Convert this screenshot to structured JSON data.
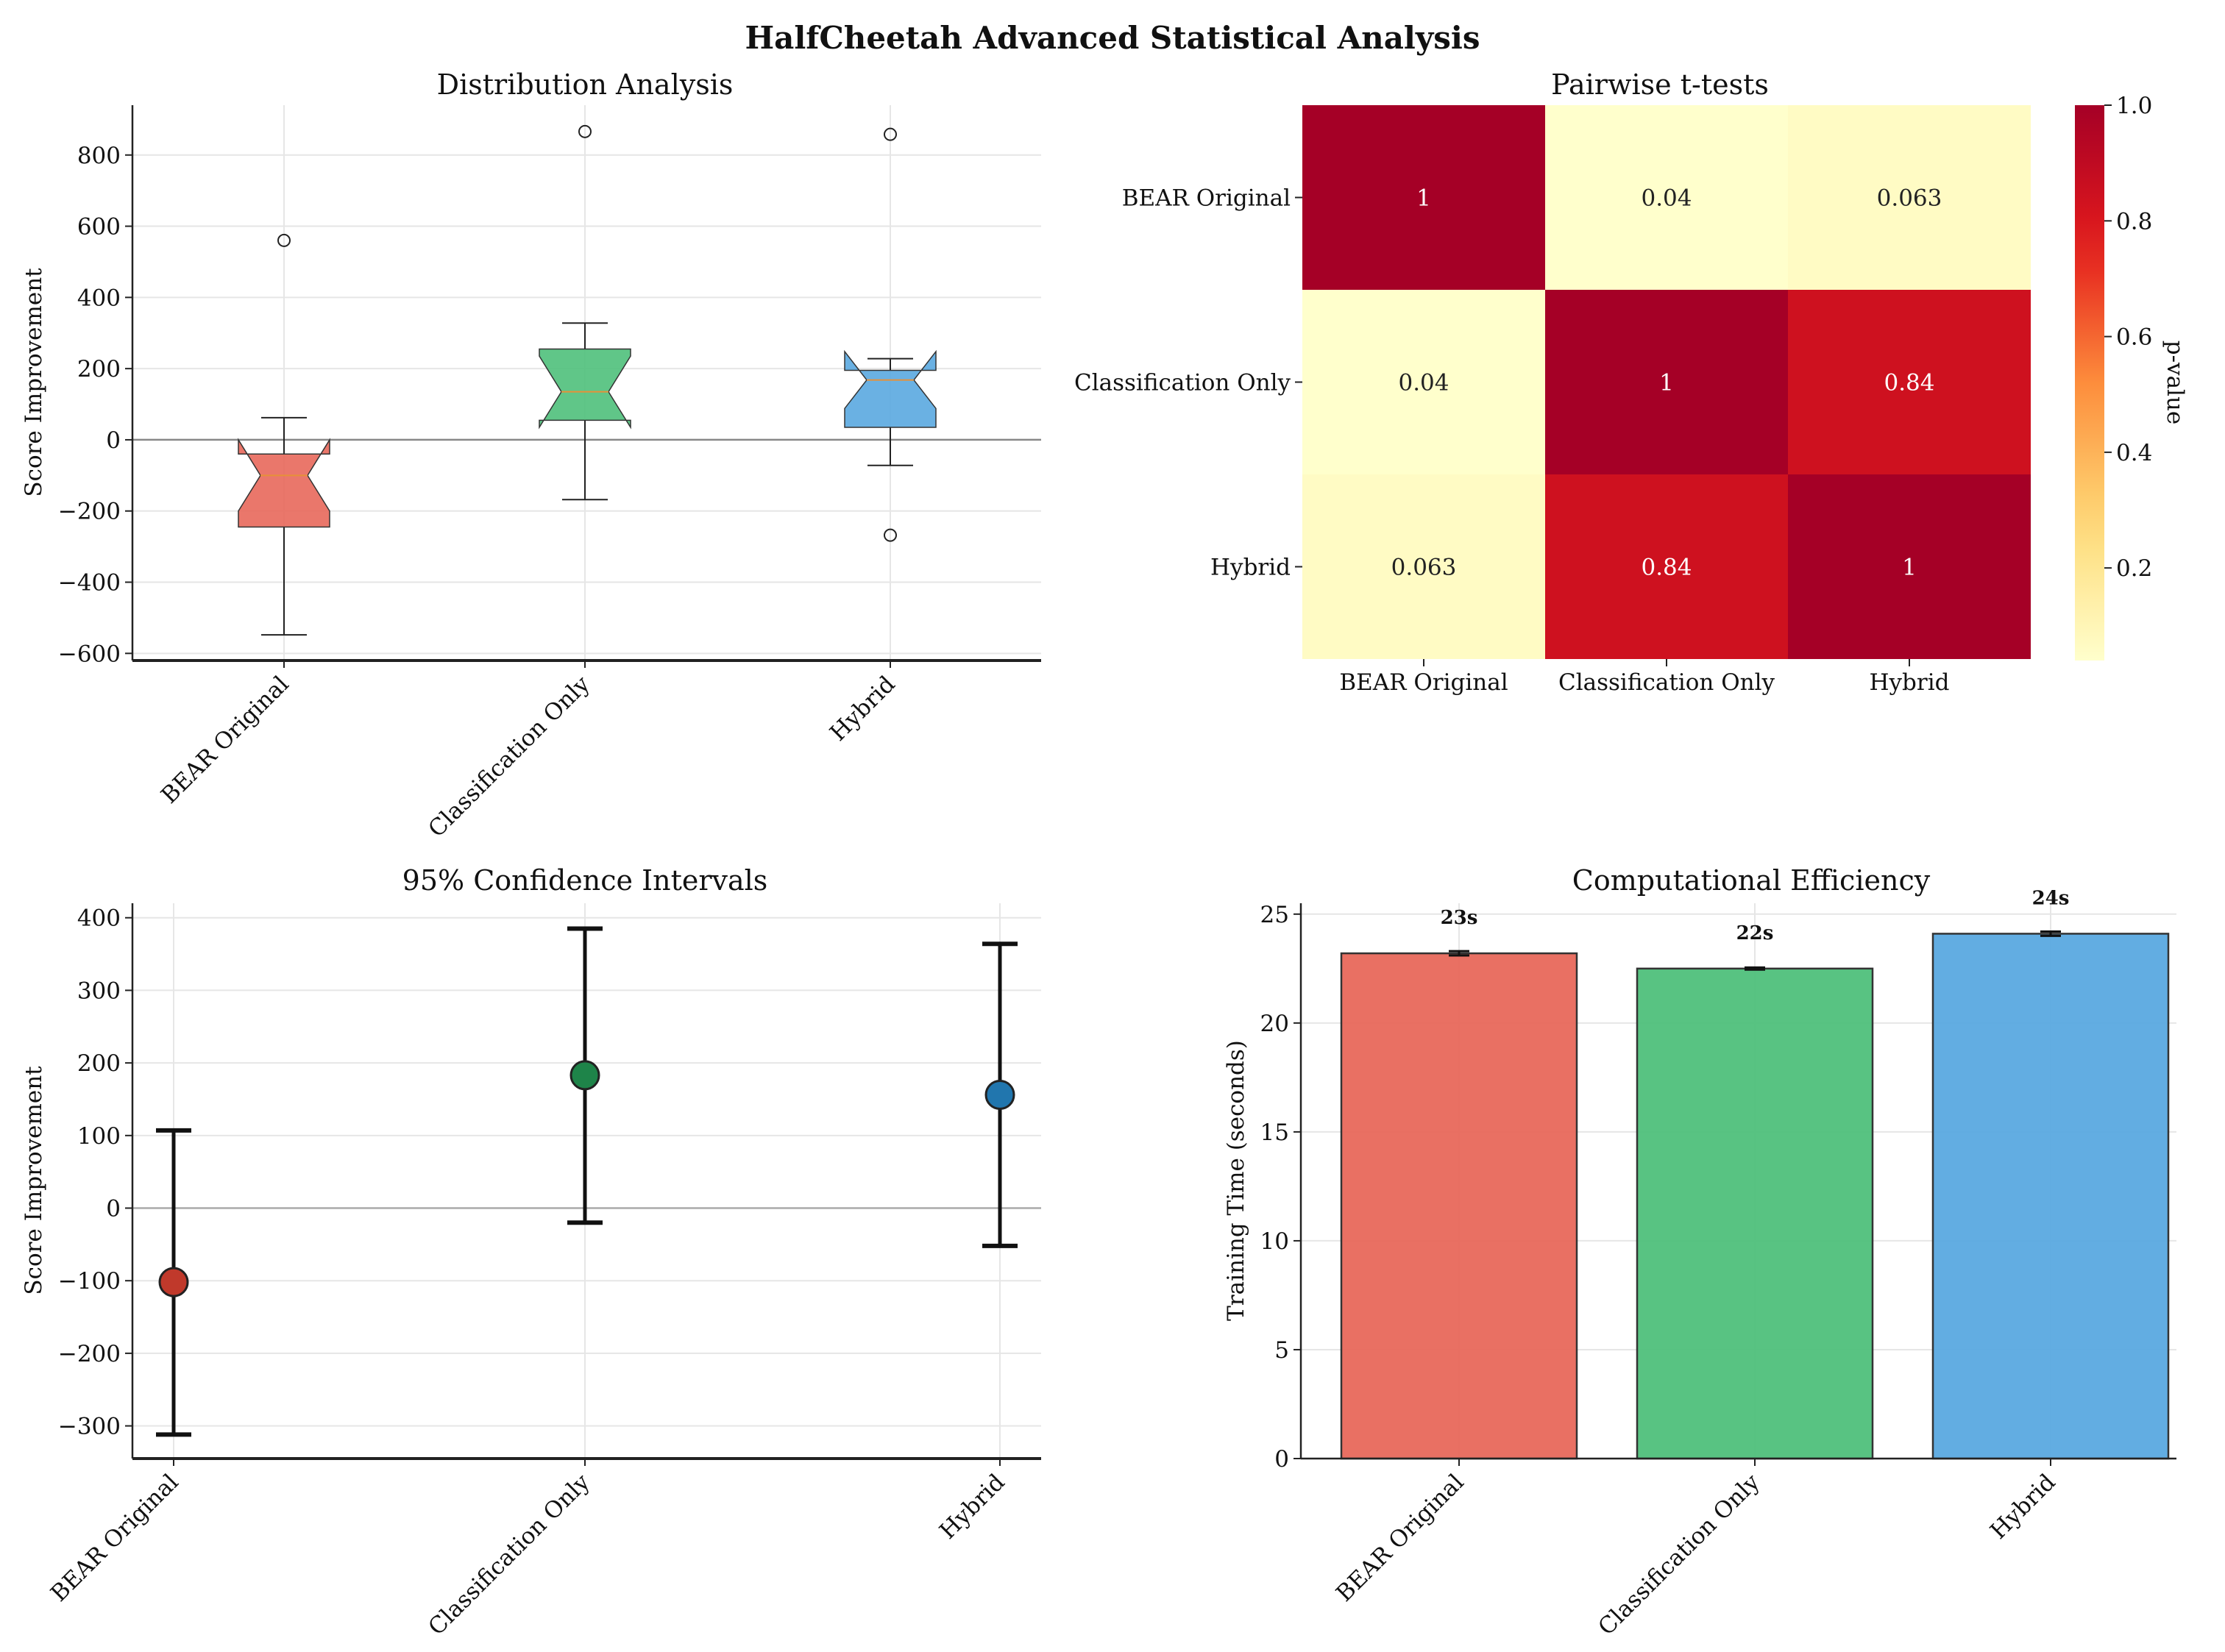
{
  "figure_title": "HalfCheetah Advanced Statistical Analysis",
  "colors": {
    "bear": "#e8685b",
    "classification": "#4fc07b",
    "hybrid": "#5aa9e0",
    "ci_bear": "#c0392b",
    "ci_classification": "#1e8449",
    "ci_hybrid": "#2176ae",
    "median": "#e69138",
    "low_p": "#ffffcc",
    "high_p": "#a50026"
  },
  "chart_data": [
    {
      "type": "box",
      "title": "Distribution Analysis",
      "xlabel": "",
      "ylabel": "Score Improvement",
      "ylim": [
        -620,
        940
      ],
      "yticks": [
        -600,
        -400,
        -200,
        0,
        200,
        400,
        600,
        800
      ],
      "ytick_labels": [
        "−600",
        "−400",
        "−200",
        "0",
        "200",
        "400",
        "600",
        "800"
      ],
      "categories": [
        "BEAR Original",
        "Classification Only",
        "Hybrid"
      ],
      "boxes": [
        {
          "name": "BEAR Original",
          "q1": -245,
          "median": -100,
          "q3": -40,
          "whisker_low": -548,
          "whisker_high": 62,
          "notch_low": -200,
          "notch_high": 0,
          "outliers": [
            560
          ]
        },
        {
          "name": "Classification Only",
          "q1": 55,
          "median": 135,
          "q3": 255,
          "whisker_low": -168,
          "whisker_high": 328,
          "notch_low": 35,
          "notch_high": 235,
          "outliers": [
            866
          ]
        },
        {
          "name": "Hybrid",
          "q1": 35,
          "median": 168,
          "q3": 195,
          "whisker_low": -72,
          "whisker_high": 228,
          "notch_low": 88,
          "notch_high": 248,
          "outliers": [
            858,
            -268
          ]
        }
      ],
      "grid": true
    },
    {
      "type": "heatmap",
      "title": "Pairwise t-tests",
      "row_labels": [
        "BEAR Original",
        "Classification Only",
        "Hybrid"
      ],
      "col_labels": [
        "BEAR Original",
        "Classification Only",
        "Hybrid"
      ],
      "values": [
        [
          1,
          0.04,
          0.063
        ],
        [
          0.04,
          1,
          0.84
        ],
        [
          0.063,
          0.84,
          1
        ]
      ],
      "annotations": [
        [
          "1",
          "0.04",
          "0.063"
        ],
        [
          "0.04",
          "1",
          "0.84"
        ],
        [
          "0.063",
          "0.84",
          "1"
        ]
      ],
      "colorbar_label": "p-value",
      "colorbar_range": [
        0.04,
        1.0
      ],
      "colorbar_ticks": [
        0.2,
        0.4,
        0.6,
        0.8,
        1.0
      ],
      "colorbar_tick_labels": [
        "0.2",
        "0.4",
        "0.6",
        "0.8",
        "1.0"
      ]
    },
    {
      "type": "errorbar",
      "title": "95% Confidence Intervals",
      "ylabel": "Score Improvement",
      "ylim": [
        -345,
        420
      ],
      "yticks": [
        -300,
        -200,
        -100,
        0,
        100,
        200,
        300,
        400
      ],
      "ytick_labels": [
        "−300",
        "−200",
        "−100",
        "0",
        "100",
        "200",
        "300",
        "400"
      ],
      "categories": [
        "BEAR Original",
        "Classification Only",
        "Hybrid"
      ],
      "means": [
        -102,
        183,
        156
      ],
      "ci_low": [
        -312,
        -20,
        -52
      ],
      "ci_high": [
        107,
        385,
        364
      ],
      "grid": true
    },
    {
      "type": "bar",
      "title": "Computational Efficiency",
      "ylabel": "Training Time (seconds)",
      "ylim": [
        0,
        25.5
      ],
      "yticks": [
        0,
        5,
        10,
        15,
        20,
        25
      ],
      "ytick_labels": [
        "0",
        "5",
        "10",
        "15",
        "20",
        "25"
      ],
      "categories": [
        "BEAR Original",
        "Classification Only",
        "Hybrid"
      ],
      "values": [
        23.2,
        22.5,
        24.1
      ],
      "errors": [
        0.1,
        0.05,
        0.1
      ],
      "value_labels": [
        "23s",
        "22s",
        "24s"
      ],
      "grid": true
    }
  ]
}
